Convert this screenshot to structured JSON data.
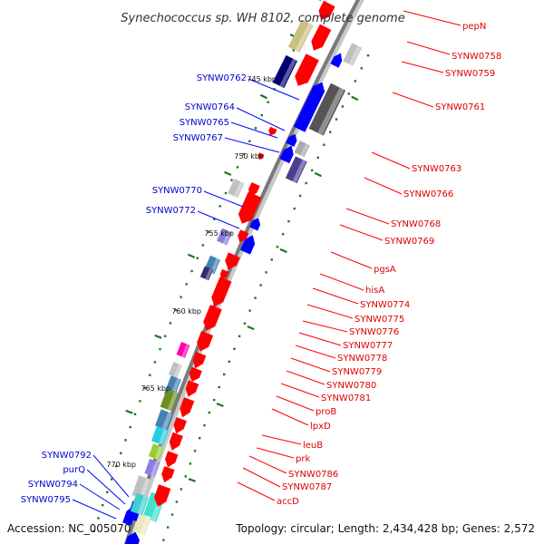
{
  "title": "Synechococcus sp. WH 8102, complete genome",
  "accession": "Accession: NC_005070",
  "topology": "Topology: circular; Length: 2,434,428 bp; Genes: 2,572",
  "colors": {
    "forward": "#ff0000",
    "reverse": "#0000ff",
    "backbone": "#888888",
    "tick": "#1a7a1a"
  },
  "kbp_ticks": [
    "745 kbp",
    "750 kbp",
    "755 kbp",
    "760 kbp",
    "765 kbp",
    "770 kbp"
  ],
  "left_labels": [
    "SYNW0762",
    "SYNW0764",
    "SYNW0765",
    "SYNW0767",
    "SYNW0770",
    "SYNW0772",
    "SYNW0792",
    "purQ",
    "SYNW0794",
    "SYNW0795"
  ],
  "right_labels": [
    "pepN",
    "SYNW0758",
    "SYNW0759",
    "SYNW0761",
    "SYNW0763",
    "SYNW0766",
    "SYNW0768",
    "SYNW0769",
    "pgsA",
    "hisA",
    "SYNW0774",
    "SYNW0775",
    "SYNW0776",
    "SYNW0777",
    "SYNW0778",
    "SYNW0779",
    "SYNW0780",
    "SYNW0781",
    "proB",
    "lpxD",
    "leuB",
    "prk",
    "SYNW0786",
    "SYNW0787",
    "accD"
  ]
}
